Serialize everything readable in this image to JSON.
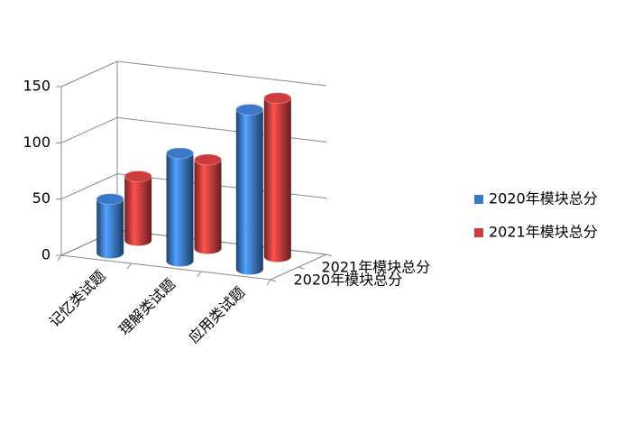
{
  "chart_data": {
    "type": "bar3d",
    "categories": [
      "记忆类试题",
      "理解类试题",
      "应用类试题"
    ],
    "series": [
      {
        "name": "2020年模块总分",
        "color": "#3c78c8",
        "values": [
          48,
          96,
          142
        ]
      },
      {
        "name": "2021年模块总分",
        "color": "#cc3c3c",
        "values": [
          57,
          79,
          141
        ]
      }
    ],
    "ylim": [
      0,
      150
    ],
    "yticks": [
      0,
      50,
      100,
      150
    ],
    "grid": true,
    "legend": "right"
  }
}
